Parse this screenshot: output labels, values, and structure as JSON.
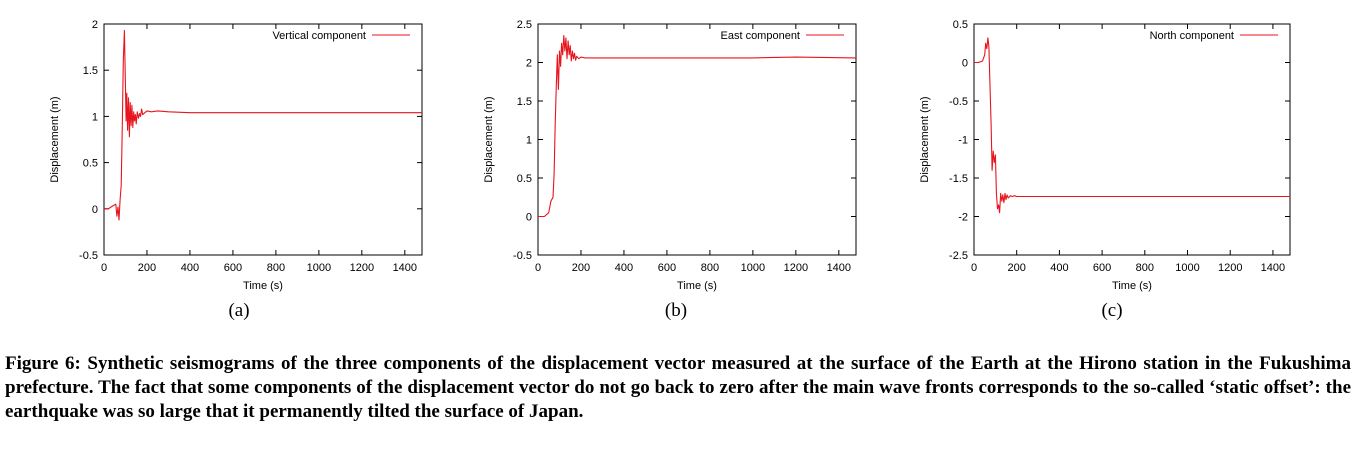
{
  "chart_data": [
    {
      "type": "line",
      "panel_label": "(a)",
      "xlabel": "Time (s)",
      "ylabel": "Displacement (m)",
      "xlim": [
        0,
        1480
      ],
      "ylim": [
        -0.5,
        2
      ],
      "xticks": [
        0,
        200,
        400,
        600,
        800,
        1000,
        1200,
        1400
      ],
      "yticks": [
        -0.5,
        0,
        0.5,
        1,
        1.5,
        2
      ],
      "legend_position": "top-right",
      "series": [
        {
          "name": "Vertical component",
          "color": "#e8141e",
          "x": [
            0,
            20,
            40,
            55,
            60,
            65,
            70,
            75,
            80,
            85,
            90,
            95,
            100,
            103,
            106,
            110,
            114,
            118,
            122,
            126,
            130,
            134,
            138,
            142,
            146,
            150,
            155,
            160,
            165,
            170,
            175,
            180,
            190,
            200,
            220,
            250,
            300,
            400,
            600,
            800,
            1000,
            1200,
            1480
          ],
          "y": [
            0,
            0,
            0.03,
            0.05,
            -0.08,
            0.02,
            -0.12,
            0.1,
            0.25,
            0.9,
            1.6,
            1.93,
            1.3,
            0.95,
            1.25,
            0.85,
            1.2,
            0.78,
            1.15,
            0.9,
            1.12,
            0.88,
            1.05,
            0.95,
            1.02,
            0.92,
            1.05,
            0.98,
            1.03,
            1.0,
            1.08,
            1.02,
            1.04,
            1.06,
            1.05,
            1.06,
            1.05,
            1.04,
            1.04,
            1.04,
            1.04,
            1.04,
            1.04
          ]
        }
      ]
    },
    {
      "type": "line",
      "panel_label": "(b)",
      "xlabel": "Time (s)",
      "ylabel": "Displacement (m)",
      "xlim": [
        0,
        1480
      ],
      "ylim": [
        -0.5,
        2.5
      ],
      "xticks": [
        0,
        200,
        400,
        600,
        800,
        1000,
        1200,
        1400
      ],
      "yticks": [
        -0.5,
        0,
        0.5,
        1,
        1.5,
        2,
        2.5
      ],
      "legend_position": "top-right",
      "series": [
        {
          "name": "East component",
          "color": "#e8141e",
          "x": [
            0,
            30,
            50,
            60,
            70,
            75,
            80,
            85,
            90,
            95,
            100,
            105,
            110,
            115,
            120,
            125,
            130,
            135,
            140,
            145,
            150,
            155,
            160,
            165,
            170,
            175,
            180,
            190,
            200,
            220,
            250,
            300,
            400,
            600,
            800,
            1000,
            1200,
            1480
          ],
          "y": [
            0,
            0,
            0.05,
            0.2,
            0.25,
            0.55,
            1.2,
            1.7,
            2.1,
            1.65,
            2.15,
            1.95,
            2.25,
            2.1,
            2.35,
            2.15,
            2.32,
            2.05,
            2.28,
            2.1,
            2.22,
            2.02,
            2.15,
            2.05,
            2.12,
            2.03,
            2.08,
            2.05,
            2.07,
            2.06,
            2.06,
            2.06,
            2.06,
            2.06,
            2.06,
            2.06,
            2.07,
            2.06
          ]
        }
      ]
    },
    {
      "type": "line",
      "panel_label": "(c)",
      "xlabel": "Time (s)",
      "ylabel": "Displacement (m)",
      "xlim": [
        0,
        1480
      ],
      "ylim": [
        -2.5,
        0.5
      ],
      "xticks": [
        0,
        200,
        400,
        600,
        800,
        1000,
        1200,
        1400
      ],
      "yticks": [
        -2.5,
        -2,
        -1.5,
        -1,
        -0.5,
        0,
        0.5
      ],
      "legend_position": "top-right",
      "series": [
        {
          "name": "North component",
          "color": "#e8141e",
          "x": [
            0,
            20,
            40,
            50,
            55,
            60,
            65,
            70,
            75,
            80,
            85,
            90,
            95,
            100,
            105,
            110,
            115,
            120,
            125,
            130,
            135,
            140,
            145,
            150,
            155,
            160,
            170,
            180,
            190,
            200,
            220,
            250,
            300,
            400,
            600,
            800,
            1000,
            1200,
            1480
          ],
          "y": [
            0,
            0,
            0.02,
            0.1,
            0.25,
            0.18,
            0.32,
            0.2,
            -0.3,
            -0.8,
            -1.4,
            -1.15,
            -1.3,
            -1.2,
            -1.7,
            -1.9,
            -1.85,
            -1.95,
            -1.7,
            -1.8,
            -1.72,
            -1.82,
            -1.7,
            -1.78,
            -1.72,
            -1.76,
            -1.73,
            -1.74,
            -1.73,
            -1.74,
            -1.74,
            -1.74,
            -1.74,
            -1.74,
            -1.74,
            -1.74,
            -1.74,
            -1.74,
            -1.74
          ]
        }
      ]
    }
  ],
  "caption": "Figure 6: Synthetic seismograms of the three components of the displacement vector measured at the surface of the Earth at the Hirono station in the Fukushima prefecture. The fact that some components of the displacement vector do not go back to zero after the main wave fronts corresponds to the so-called ‘static offset’: the earthquake was so large that it permanently tilted the surface of Japan."
}
